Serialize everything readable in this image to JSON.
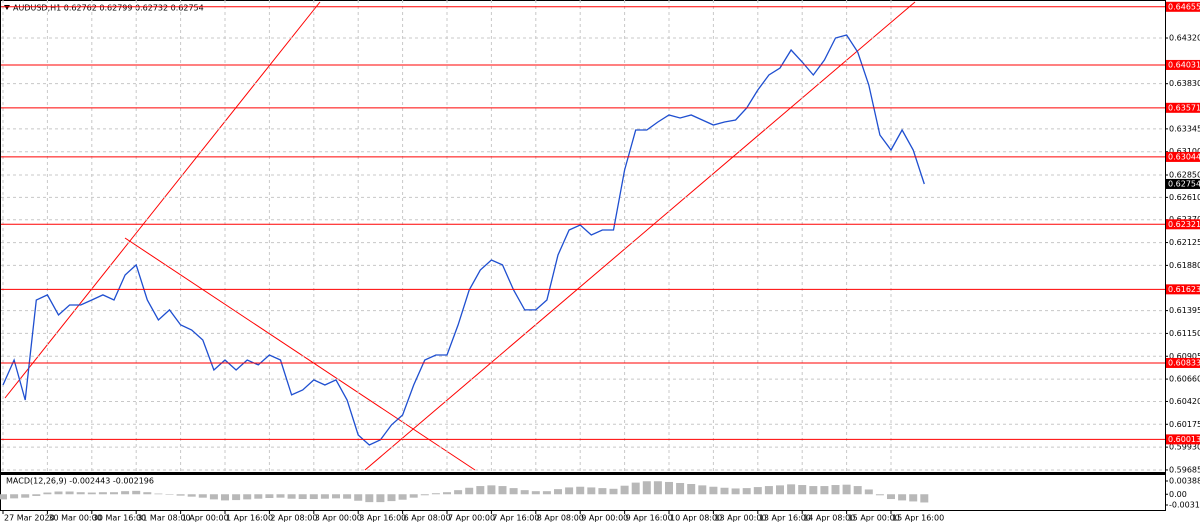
{
  "chart_data": [
    {
      "type": "line",
      "title": "AUDUSD,H1  0.62762 0.62799 0.62732 0.62754",
      "categories": [
        "27 Mar 2020",
        null,
        null,
        null,
        "30 Mar 00:00",
        null,
        null,
        null,
        "30 Mar 16:00",
        null,
        null,
        null,
        "31 Mar 08:00",
        null,
        null,
        null,
        "1 Apr 00:00",
        null,
        null,
        null,
        "1 Apr 16:00",
        null,
        null,
        null,
        "2 Apr 08:00",
        null,
        null,
        null,
        "3 Apr 00:00",
        null,
        null,
        null,
        "3 Apr 16:00",
        null,
        null,
        null,
        "6 Apr 08:00",
        null,
        null,
        null,
        "7 Apr 00:00",
        null,
        null,
        null,
        "7 Apr 16:00",
        null,
        null,
        null,
        "8 Apr 08:00",
        null,
        null,
        null,
        "9 Apr 00:00",
        null,
        null,
        null,
        "9 Apr 16:00",
        null,
        null,
        null,
        "10 Apr 08:00",
        null,
        null,
        null,
        "13 Apr 00:00",
        null,
        null,
        null,
        "13 Apr 16:00",
        null,
        null,
        null,
        "14 Apr 08:00",
        null,
        null,
        null,
        "15 Apr 00:00",
        null,
        null,
        null,
        "15 Apr 16:00",
        null,
        null,
        null
      ],
      "values": [
        0.60597,
        0.60865,
        0.60436,
        0.61509,
        0.61563,
        0.61348,
        0.61455,
        0.61455,
        0.61509,
        0.61563,
        0.61509,
        0.61777,
        0.61885,
        0.61509,
        0.61294,
        0.61402,
        0.61241,
        0.61187,
        0.6108,
        0.60758,
        0.60865,
        0.60758,
        0.60865,
        0.60812,
        0.60919,
        0.60865,
        0.6049,
        0.60543,
        0.60651,
        0.60597,
        0.60651,
        0.60436,
        0.6006,
        0.59953,
        0.60007,
        0.60168,
        0.60275,
        0.60597,
        0.60865,
        0.60919,
        0.60919,
        0.61241,
        0.61616,
        0.61831,
        0.61938,
        0.61885,
        0.61616,
        0.61402,
        0.61402,
        0.61509,
        0.61992,
        0.6226,
        0.62314,
        0.62206,
        0.6226,
        0.6226,
        0.62904,
        0.63333,
        0.63333,
        0.63419,
        0.63494,
        0.63462,
        0.63494,
        0.6344,
        0.63387,
        0.63419,
        0.6344,
        0.63569,
        0.63762,
        0.63923,
        0.63998,
        0.64191,
        0.64063,
        0.63923,
        0.64084,
        0.6432,
        0.64352,
        0.6417,
        0.63816,
        0.63279,
        0.63118,
        0.63333,
        0.63118,
        0.62754
      ],
      "color": "#1f4fd0",
      "ylim": [
        0.59663,
        0.64728
      ],
      "yticks": [
        {
          "value": 0.6432,
          "label": "0.64320"
        },
        {
          "value": 0.6383,
          "label": "0.63830"
        },
        0.63345,
        {
          "value": 0.631,
          "label": "0.63100"
        },
        {
          "value": 0.6285,
          "label": "0.62850"
        },
        {
          "value": 0.6261,
          "label": "0.62610"
        },
        {
          "value": 0.6237,
          "label": "0.62370"
        },
        0.62125,
        {
          "value": 0.6188,
          "label": "0.61880"
        },
        0.61395,
        {
          "value": 0.6115,
          "label": "0.61150"
        },
        0.60905,
        {
          "value": 0.6066,
          "label": "0.60660"
        },
        {
          "value": 0.6042,
          "label": "0.60420"
        },
        0.60175,
        {
          "value": 0.5993,
          "label": "0.59930"
        },
        0.59685
      ],
      "levels": [
        0.64655,
        0.64031,
        0.63571,
        0.63044,
        0.62321,
        0.61623,
        0.60833,
        0.60013
      ],
      "level_color": "#ff0000",
      "grid": true
    },
    {
      "type": "bar",
      "title": "MACD(12,26,9) -0.002443 -0.002196",
      "values": [
        -0.0015,
        -0.0012,
        -0.001,
        -0.0005,
        0.0005,
        0.0008,
        0.0008,
        0.0006,
        0.0005,
        0.0006,
        0.0006,
        0.0009,
        0.001,
        0.0006,
        0.0002,
        -0.0001,
        -0.0004,
        -0.0007,
        -0.001,
        -0.0015,
        -0.0018,
        -0.0017,
        -0.0015,
        -0.0013,
        -0.0011,
        -0.001,
        -0.0013,
        -0.0014,
        -0.0014,
        -0.0013,
        -0.0012,
        -0.0013,
        -0.0019,
        -0.0023,
        -0.0023,
        -0.002,
        -0.0016,
        -0.001,
        -0.0003,
        0.0003,
        0.0006,
        0.0012,
        0.0019,
        0.0024,
        0.0026,
        0.0024,
        0.0018,
        0.0012,
        0.0009,
        0.0009,
        0.0015,
        0.002,
        0.0022,
        0.002,
        0.0018,
        0.0016,
        0.0025,
        0.0034,
        0.0038,
        0.0038,
        0.0036,
        0.0033,
        0.003,
        0.0026,
        0.0022,
        0.0019,
        0.0017,
        0.0018,
        0.0021,
        0.0024,
        0.0026,
        0.0029,
        0.0027,
        0.0024,
        0.0024,
        0.0027,
        0.0028,
        0.0024,
        0.0014,
        -0.0003,
        -0.0014,
        -0.0018,
        -0.0021,
        -0.0024
      ],
      "color": "#b8b8b8",
      "ylim": [
        -0.00402,
        0.00534
      ],
      "yticks": [
        0.003881,
        {
          "value": 0,
          "label": "0.00"
        },
        -0.003141
      ]
    }
  ]
}
